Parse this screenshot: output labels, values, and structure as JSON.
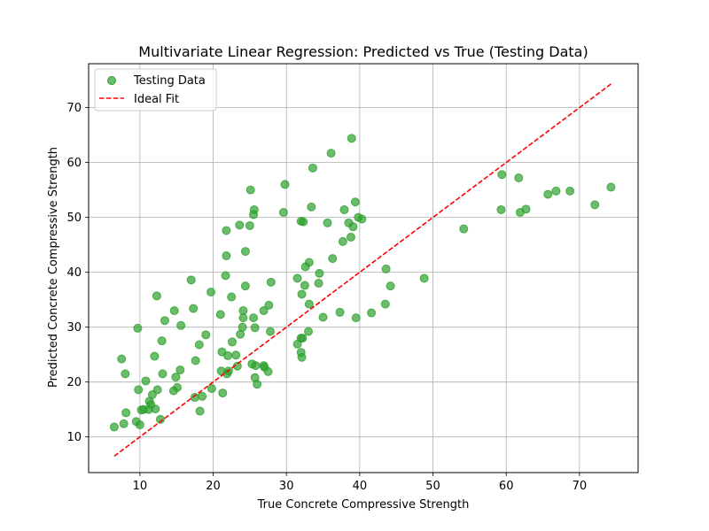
{
  "chart_data": {
    "type": "scatter",
    "title": "Multivariate Linear Regression: Predicted vs True (Testing Data)",
    "xlabel": "True Concrete Compressive Strength",
    "ylabel": "Predicted Concrete Compressive Strength",
    "xlim": [
      3,
      78
    ],
    "ylim": [
      3.5,
      78
    ],
    "xticks": [
      10,
      20,
      30,
      40,
      50,
      60,
      70
    ],
    "yticks": [
      10,
      20,
      30,
      40,
      50,
      60,
      70
    ],
    "grid": true,
    "legend_position": "top-left",
    "series": [
      {
        "name": "Testing Data",
        "kind": "scatter",
        "color": "#2ca02c",
        "points": [
          [
            6.5,
            11.8
          ],
          [
            7.8,
            12.4
          ],
          [
            8.1,
            14.4
          ],
          [
            7.5,
            24.2
          ],
          [
            8.0,
            21.5
          ],
          [
            9.5,
            12.8
          ],
          [
            9.8,
            18.6
          ],
          [
            10.0,
            12.2
          ],
          [
            10.2,
            14.9
          ],
          [
            10.5,
            15.0
          ],
          [
            9.7,
            29.8
          ],
          [
            10.8,
            20.2
          ],
          [
            11.3,
            16.5
          ],
          [
            11.5,
            15.9
          ],
          [
            11.7,
            17.7
          ],
          [
            11.2,
            15.0
          ],
          [
            12.1,
            15.1
          ],
          [
            12.0,
            24.7
          ],
          [
            12.4,
            18.6
          ],
          [
            12.3,
            35.7
          ],
          [
            12.8,
            13.2
          ],
          [
            13.0,
            27.5
          ],
          [
            13.1,
            21.5
          ],
          [
            13.4,
            31.2
          ],
          [
            14.6,
            18.4
          ],
          [
            14.7,
            33.0
          ],
          [
            14.9,
            20.9
          ],
          [
            15.1,
            19.0
          ],
          [
            15.5,
            22.2
          ],
          [
            15.6,
            30.3
          ],
          [
            17.0,
            38.6
          ],
          [
            17.3,
            33.4
          ],
          [
            17.5,
            17.2
          ],
          [
            17.6,
            23.9
          ],
          [
            18.2,
            14.7
          ],
          [
            18.1,
            26.8
          ],
          [
            18.5,
            17.4
          ],
          [
            19.0,
            28.6
          ],
          [
            19.7,
            36.4
          ],
          [
            19.8,
            18.8
          ],
          [
            21.0,
            32.3
          ],
          [
            21.1,
            22.0
          ],
          [
            21.2,
            25.5
          ],
          [
            21.3,
            18.0
          ],
          [
            21.8,
            47.6
          ],
          [
            21.8,
            43.0
          ],
          [
            21.7,
            39.4
          ],
          [
            21.9,
            21.5
          ],
          [
            22.0,
            24.8
          ],
          [
            22.1,
            22.0
          ],
          [
            22.5,
            35.5
          ],
          [
            22.6,
            27.3
          ],
          [
            23.1,
            24.9
          ],
          [
            23.3,
            22.9
          ],
          [
            23.7,
            28.7
          ],
          [
            23.6,
            48.6
          ],
          [
            24.0,
            30.0
          ],
          [
            24.1,
            31.7
          ],
          [
            24.1,
            33.0
          ],
          [
            24.4,
            37.5
          ],
          [
            24.4,
            43.8
          ],
          [
            25.0,
            48.5
          ],
          [
            25.1,
            55.0
          ],
          [
            25.3,
            23.3
          ],
          [
            25.5,
            31.7
          ],
          [
            25.5,
            50.5
          ],
          [
            25.6,
            51.4
          ],
          [
            25.7,
            29.9
          ],
          [
            25.7,
            20.8
          ],
          [
            25.8,
            23.0
          ],
          [
            26.0,
            19.6
          ],
          [
            26.9,
            23.0
          ],
          [
            26.9,
            33.0
          ],
          [
            27.0,
            22.7
          ],
          [
            27.5,
            21.9
          ],
          [
            27.6,
            34.0
          ],
          [
            27.8,
            29.2
          ],
          [
            27.9,
            38.2
          ],
          [
            29.6,
            50.9
          ],
          [
            29.8,
            56.0
          ],
          [
            31.5,
            26.9
          ],
          [
            31.5,
            38.9
          ],
          [
            32.0,
            28.0
          ],
          [
            32.0,
            49.3
          ],
          [
            32.1,
            36.0
          ],
          [
            32.1,
            24.5
          ],
          [
            32.0,
            25.4
          ],
          [
            32.2,
            28.0
          ],
          [
            32.3,
            49.2
          ],
          [
            32.5,
            37.6
          ],
          [
            32.6,
            41.0
          ],
          [
            33.0,
            29.2
          ],
          [
            33.1,
            41.8
          ],
          [
            33.1,
            34.2
          ],
          [
            33.4,
            51.9
          ],
          [
            33.6,
            59.0
          ],
          [
            34.4,
            38.0
          ],
          [
            34.5,
            39.8
          ],
          [
            35.0,
            31.8
          ],
          [
            35.6,
            49.0
          ],
          [
            36.1,
            61.7
          ],
          [
            36.3,
            42.5
          ],
          [
            37.3,
            32.7
          ],
          [
            37.7,
            45.6
          ],
          [
            37.9,
            51.4
          ],
          [
            38.5,
            49.0
          ],
          [
            38.8,
            46.4
          ],
          [
            38.9,
            64.4
          ],
          [
            39.1,
            48.3
          ],
          [
            39.4,
            52.8
          ],
          [
            39.5,
            31.7
          ],
          [
            39.8,
            50.0
          ],
          [
            40.3,
            49.7
          ],
          [
            41.6,
            32.6
          ],
          [
            43.5,
            34.2
          ],
          [
            43.6,
            40.6
          ],
          [
            44.2,
            37.5
          ],
          [
            48.8,
            38.9
          ],
          [
            54.2,
            47.9
          ],
          [
            59.3,
            51.4
          ],
          [
            59.4,
            57.8
          ],
          [
            61.7,
            57.2
          ],
          [
            61.9,
            50.9
          ],
          [
            62.7,
            51.5
          ],
          [
            65.7,
            54.2
          ],
          [
            66.8,
            54.8
          ],
          [
            68.7,
            54.8
          ],
          [
            72.1,
            52.3
          ],
          [
            74.3,
            55.5
          ]
        ]
      },
      {
        "name": "Ideal Fit",
        "kind": "line",
        "style": "dashed",
        "color": "#ff0000",
        "x": [
          6.5,
          74.5
        ],
        "y": [
          6.5,
          74.5
        ]
      }
    ]
  }
}
